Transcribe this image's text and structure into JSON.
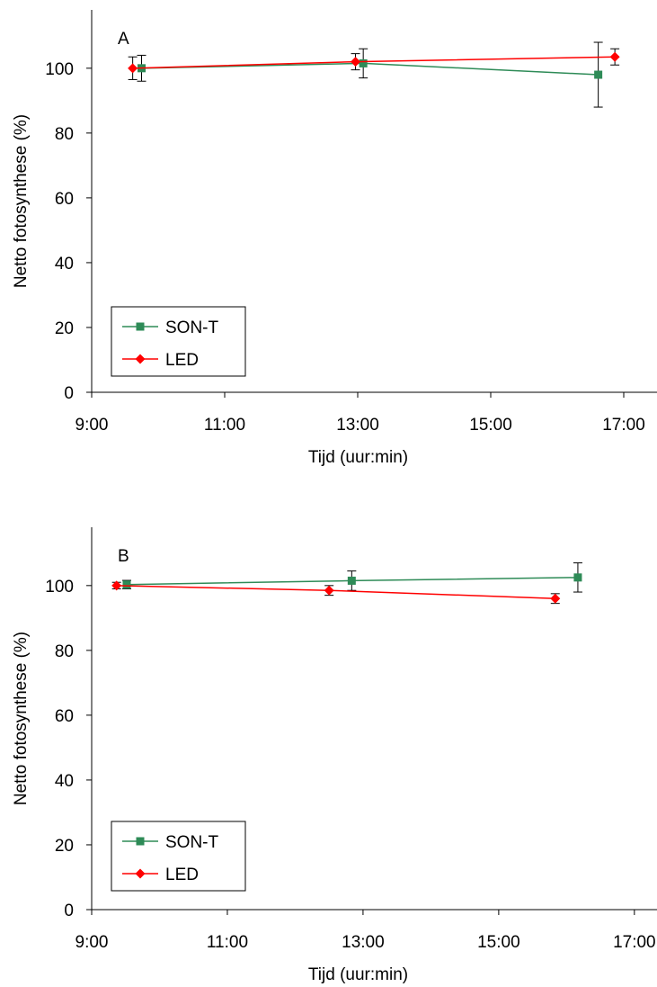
{
  "chart_data": [
    {
      "type": "line",
      "panel_label": "A",
      "xlabel": "Tijd (uur:min)",
      "ylabel": "Netto fotosynthese (%)",
      "x_ticks": [
        "9:00",
        "11:00",
        "13:00",
        "15:00",
        "17:00"
      ],
      "y_ticks": [
        "0",
        "20",
        "40",
        "60",
        "80",
        "100"
      ],
      "xlim": [
        "9:00",
        "17:30"
      ],
      "ylim": [
        0,
        118
      ],
      "grid": false,
      "legend_position": "bottom-left",
      "series": [
        {
          "name": "SON-T",
          "color": "#2e8b57",
          "marker": "square",
          "points": [
            {
              "x": "9:45",
              "y": 100,
              "err": 4
            },
            {
              "x": "13:05",
              "y": 101.5,
              "err": 4.5
            },
            {
              "x": "16:37",
              "y": 98,
              "err": 10
            }
          ]
        },
        {
          "name": "LED",
          "color": "#ff0000",
          "marker": "diamond",
          "points": [
            {
              "x": "9:37",
              "y": 100,
              "err": 3.5
            },
            {
              "x": "12:58",
              "y": 102,
              "err": 2.5
            },
            {
              "x": "16:52",
              "y": 103.5,
              "err": 2.5
            }
          ]
        }
      ]
    },
    {
      "type": "line",
      "panel_label": "B",
      "xlabel": "Tijd (uur:min)",
      "ylabel": "Netto fotosynthese (%)",
      "x_ticks": [
        "9:00",
        "11:00",
        "13:00",
        "15:00",
        "17:00"
      ],
      "y_ticks": [
        "0",
        "20",
        "40",
        "60",
        "80",
        "100"
      ],
      "xlim": [
        "9:00",
        "17:20"
      ],
      "ylim": [
        0,
        118
      ],
      "grid": false,
      "legend_position": "bottom-left",
      "series": [
        {
          "name": "SON-T",
          "color": "#2e8b57",
          "marker": "square",
          "points": [
            {
              "x": "9:31",
              "y": 100.3,
              "err": 1.3
            },
            {
              "x": "12:50",
              "y": 101.5,
              "err": 3
            },
            {
              "x": "16:10",
              "y": 102.5,
              "err": 4.5
            }
          ]
        },
        {
          "name": "LED",
          "color": "#ff0000",
          "marker": "diamond",
          "points": [
            {
              "x": "9:22",
              "y": 100,
              "err": 1
            },
            {
              "x": "12:30",
              "y": 98.5,
              "err": 1.5
            },
            {
              "x": "15:50",
              "y": 96,
              "err": 1.5
            }
          ]
        }
      ]
    }
  ]
}
